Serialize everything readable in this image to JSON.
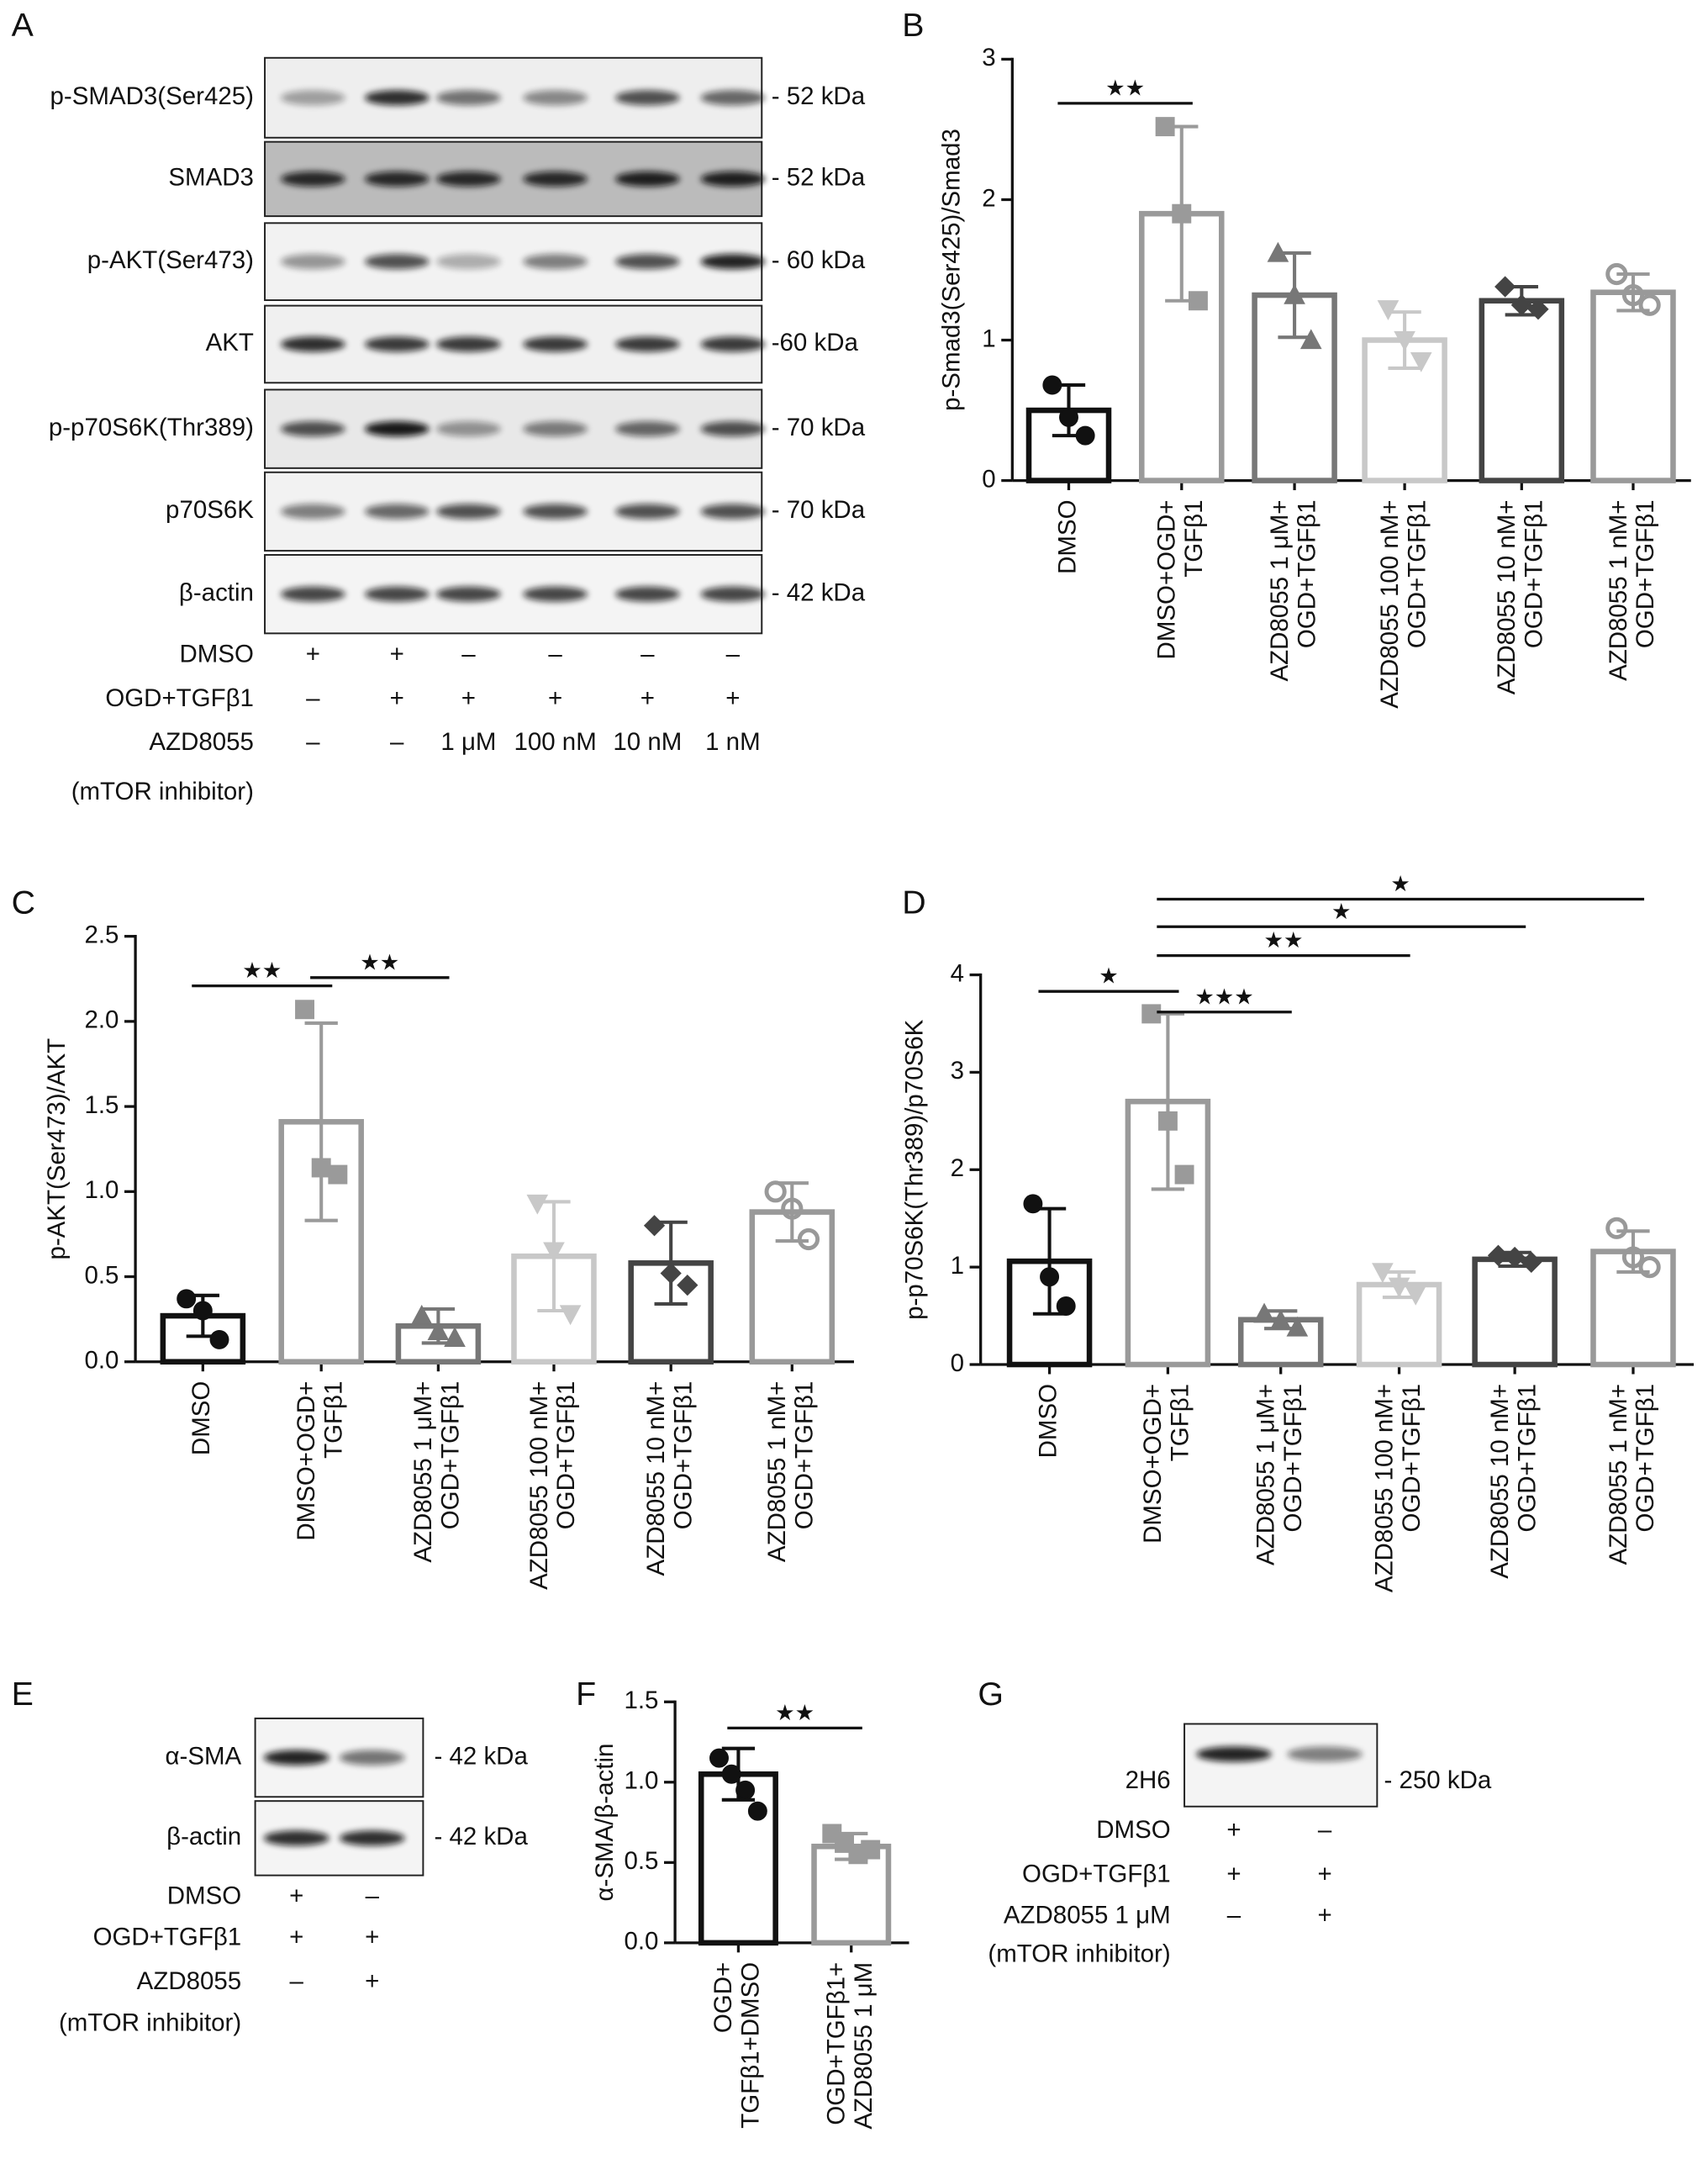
{
  "blots": [
    {
      "label": "A",
      "rows": [
        {
          "name": "p-SMAD3(Ser425)",
          "kda": "- 52 kDa"
        },
        {
          "name": "SMAD3",
          "kda": "- 52 kDa"
        },
        {
          "name": "p-AKT(Ser473)",
          "kda": "- 60 kDa"
        },
        {
          "name": "AKT",
          "kda": "-60 kDa"
        },
        {
          "name": "p-p70S6K(Thr389)",
          "kda": "- 70 kDa"
        },
        {
          "name": "p70S6K",
          "kda": "- 70 kDa"
        },
        {
          "name": "β-actin",
          "kda": "- 42 kDa"
        }
      ],
      "conditions": [
        {
          "name": "DMSO",
          "lanes": [
            "+",
            "+",
            "–",
            "–",
            "–",
            "–"
          ]
        },
        {
          "name": "OGD+TGFβ1",
          "lanes": [
            "–",
            "+",
            "+",
            "+",
            "+",
            "+"
          ]
        },
        {
          "name": "AZD8055",
          "lanes": [
            "–",
            "–",
            "1 μM",
            "100 nM",
            "10 nM",
            "1 nM"
          ]
        }
      ],
      "note": "(mTOR inhibitor)"
    },
    {
      "label": "E",
      "rows": [
        {
          "name": "α-SMA",
          "kda": "- 42 kDa"
        },
        {
          "name": "β-actin",
          "kda": "- 42 kDa"
        }
      ],
      "conditions": [
        {
          "name": "DMSO",
          "lanes": [
            "+",
            "–"
          ]
        },
        {
          "name": "OGD+TGFβ1",
          "lanes": [
            "+",
            "+"
          ]
        },
        {
          "name": "AZD8055",
          "lanes": [
            "–",
            "+"
          ]
        }
      ],
      "note": "(mTOR inhibitor)"
    },
    {
      "label": "G",
      "rows": [
        {
          "name": "2H6",
          "kda": "- 250 kDa"
        }
      ],
      "conditions": [
        {
          "name": "DMSO",
          "lanes": [
            "+",
            "–"
          ]
        },
        {
          "name": "OGD+TGFβ1",
          "lanes": [
            "+",
            "+"
          ]
        },
        {
          "name": "AZD8055 1 μM",
          "lanes": [
            "–",
            "+"
          ]
        }
      ],
      "note": "(mTOR inhibitor)"
    }
  ],
  "chart_data": [
    {
      "type": "bar",
      "label": "B",
      "ylabel": "p-Smad3(Ser425)/Smad3",
      "categories": [
        "DMSO",
        "DMSO+OGD+\nTGFβ1",
        "AZD8055 1 μM+\nOGD+TGFβ1",
        "AZD8055 100 nM+\nOGD+TGFβ1",
        "AZD8055 10 nM+\nOGD+TGFβ1",
        "AZD8055 1 nM+\nOGD+TGFβ1"
      ],
      "values": [
        0.5,
        1.9,
        1.32,
        1.0,
        1.28,
        1.34
      ],
      "errors": [
        0.18,
        0.62,
        0.3,
        0.2,
        0.1,
        0.13
      ],
      "points": [
        [
          0.68,
          0.45,
          0.32
        ],
        [
          2.52,
          1.9,
          1.28
        ],
        [
          1.62,
          1.32,
          1.0
        ],
        [
          1.22,
          1.0,
          0.85
        ],
        [
          1.38,
          1.25,
          1.22
        ],
        [
          1.47,
          1.32,
          1.25
        ]
      ],
      "colors": [
        "#111111",
        "#9a9a9a",
        "#777777",
        "#c8c8c8",
        "#444444",
        "#999999"
      ],
      "markers": [
        "circle",
        "square",
        "triangle",
        "triangle-down",
        "diamond",
        "circle-open"
      ],
      "ylim": [
        0,
        3
      ],
      "yticks": [
        0,
        1,
        2,
        3
      ],
      "significance": [
        {
          "groups": [
            0,
            1
          ],
          "label": "★★"
        }
      ]
    },
    {
      "type": "bar",
      "label": "C",
      "ylabel": "p-AKT(Ser473)/AKT",
      "categories": [
        "DMSO",
        "DMSO+OGD+\nTGFβ1",
        "AZD8055 1 μM+\nOGD+TGFβ1",
        "AZD8055 100 nM+\nOGD+TGFβ1",
        "AZD8055 10 nM+\nOGD+TGFβ1",
        "AZD8055 1 nM+\nOGD+TGFβ1"
      ],
      "values": [
        0.27,
        1.41,
        0.21,
        0.62,
        0.58,
        0.88
      ],
      "errors": [
        0.12,
        0.58,
        0.1,
        0.32,
        0.24,
        0.17
      ],
      "points": [
        [
          0.37,
          0.3,
          0.13
        ],
        [
          2.07,
          1.14,
          1.1
        ],
        [
          0.27,
          0.18,
          0.14
        ],
        [
          0.93,
          0.65,
          0.28
        ],
        [
          0.8,
          0.52,
          0.45
        ],
        [
          1.0,
          0.9,
          0.72
        ]
      ],
      "colors": [
        "#111111",
        "#9a9a9a",
        "#777777",
        "#c8c8c8",
        "#444444",
        "#999999"
      ],
      "markers": [
        "circle",
        "square",
        "triangle",
        "triangle-down",
        "diamond",
        "circle-open"
      ],
      "ylim": [
        0,
        2.5
      ],
      "yticks": [
        {
          "value": 0,
          "label": "0.0"
        },
        0.5,
        {
          "value": 1,
          "label": "1.0"
        },
        1.5,
        {
          "value": 2,
          "label": "2.0"
        },
        2.5
      ],
      "significance": [
        {
          "groups": [
            0,
            1
          ],
          "label": "★★"
        },
        {
          "groups": [
            1,
            2
          ],
          "label": "★★"
        }
      ]
    },
    {
      "type": "bar",
      "label": "D",
      "ylabel": "p-p70S6K(Thr389)/p70S6K",
      "categories": [
        "DMSO",
        "DMSO+OGD+\nTGFβ1",
        "AZD8055 1 μM+\nOGD+TGFβ1",
        "AZD8055 100 nM+\nOGD+TGFβ1",
        "AZD8055 10 nM+\nOGD+TGFβ1",
        "AZD8055 1 nM+\nOGD+TGFβ1"
      ],
      "values": [
        1.06,
        2.7,
        0.46,
        0.82,
        1.08,
        1.16
      ],
      "errors": [
        0.54,
        0.9,
        0.09,
        0.13,
        0.07,
        0.21
      ],
      "points": [
        [
          1.65,
          0.9,
          0.6
        ],
        [
          3.6,
          2.5,
          1.95
        ],
        [
          0.52,
          0.45,
          0.38
        ],
        [
          0.95,
          0.8,
          0.72
        ],
        [
          1.12,
          1.1,
          1.05
        ],
        [
          1.4,
          1.1,
          1.0
        ]
      ],
      "colors": [
        "#111111",
        "#9a9a9a",
        "#777777",
        "#c8c8c8",
        "#444444",
        "#999999"
      ],
      "markers": [
        "circle",
        "square",
        "triangle",
        "triangle-down",
        "diamond",
        "circle-open"
      ],
      "ylim": [
        0,
        4
      ],
      "yticks": [
        0,
        1,
        2,
        3,
        4
      ],
      "significance": [
        {
          "groups": [
            0,
            1
          ],
          "label": "★"
        },
        {
          "groups": [
            1,
            2
          ],
          "label": "★★★"
        },
        {
          "groups": [
            1,
            3
          ],
          "label": "★★"
        },
        {
          "groups": [
            1,
            4
          ],
          "label": "★"
        },
        {
          "groups": [
            1,
            5
          ],
          "label": "★"
        }
      ]
    },
    {
      "type": "bar",
      "label": "F",
      "ylabel": "α-SMA/β-actin",
      "categories": [
        "OGD+\nTGFβ1+DMSO",
        "OGD+TGFβ1+\nAZD8055 1 μM"
      ],
      "values": [
        1.05,
        0.6
      ],
      "errors": [
        0.16,
        0.08
      ],
      "points": [
        [
          1.15,
          1.05,
          0.95,
          0.82
        ],
        [
          0.68,
          0.62,
          0.55,
          0.58
        ]
      ],
      "colors": [
        "#111111",
        "#9a9a9a"
      ],
      "markers": [
        "circle",
        "square"
      ],
      "ylim": [
        0,
        1.5
      ],
      "yticks": [
        {
          "value": 0,
          "label": "0.0"
        },
        0.5,
        {
          "value": 1,
          "label": "1.0"
        },
        1.5
      ],
      "significance": [
        {
          "groups": [
            0,
            1
          ],
          "label": "★★"
        }
      ]
    }
  ]
}
